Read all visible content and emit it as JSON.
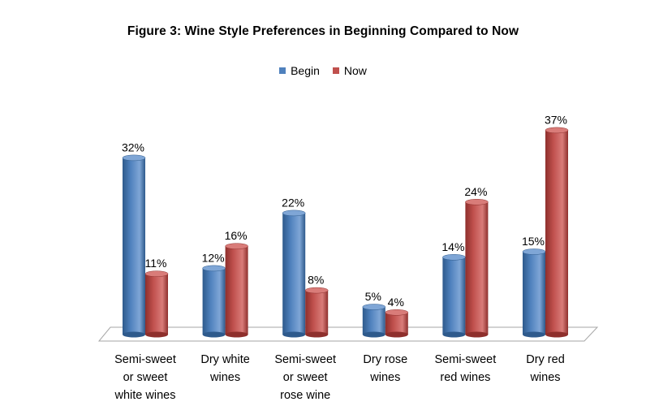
{
  "chart_data": {
    "type": "bar",
    "title": "Figure 3: Wine Style Preferences in Beginning  Compared to Now",
    "categories": [
      [
        "Semi-sweet",
        "or sweet",
        "white wines"
      ],
      [
        "Dry white",
        "wines"
      ],
      [
        "Semi-sweet",
        "or sweet",
        "rose wine"
      ],
      [
        "Dry rose",
        "wines"
      ],
      [
        "Semi-sweet",
        "red wines"
      ],
      [
        "Dry red",
        "wines"
      ]
    ],
    "series": [
      {
        "name": "Begin",
        "values": [
          32,
          12,
          22,
          5,
          14,
          15
        ],
        "labels": [
          "32%",
          "12%",
          "22%",
          "5%",
          "14%",
          "15%"
        ],
        "color": "#4F81BD",
        "dark": "#2E5A8C",
        "light": "#7FA6D6"
      },
      {
        "name": "Now",
        "values": [
          11,
          16,
          8,
          4,
          24,
          37
        ],
        "labels": [
          "11%",
          "16%",
          "8%",
          "4%",
          "24%",
          "37%"
        ],
        "color": "#C0504D",
        "dark": "#8E2F2C",
        "light": "#D97C79"
      }
    ],
    "ylim": [
      0,
      40
    ],
    "grid": false,
    "legend_position": "top"
  }
}
